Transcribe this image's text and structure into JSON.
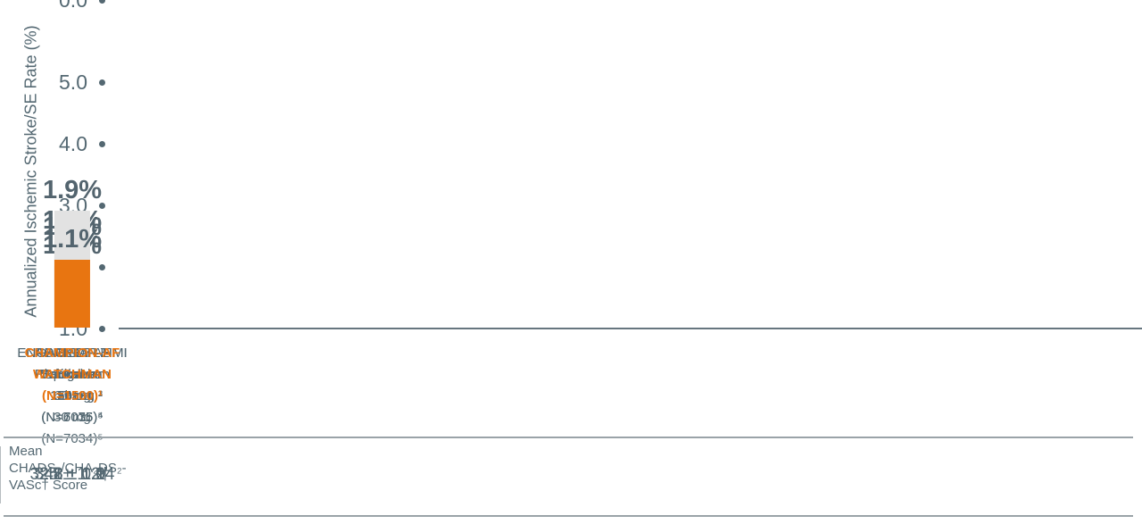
{
  "chart_data": {
    "type": "bar",
    "title": "",
    "xlabel": "",
    "ylabel": "Annualized Ischemic Stroke/SE Rate (%)",
    "ylim": [
      0,
      5
    ],
    "ytick_labels": [
      "5.0",
      "4.0",
      "3.0",
      "2.0",
      "1.0",
      "0.0"
    ],
    "grid": false,
    "legend": false,
    "categories": [
      "ROCKET-AF Rivaroxaban (N=7131)²",
      "ARISTOTLE Apixaban (N=9120)³",
      "RE-LY Dabigatran 150 mg (N=6076)⁴",
      "RE-LY Dabigatran 110 mg (N=6015)⁴",
      "ENGAGE-AF-TIMI Edoxaban 60 mg (N=7035)⁵",
      "ENGAGE-AF-TIMI Edoxaban 30 mg (N=7034)⁵",
      "CHAMPION-AF WATCHMAN (N=1500)¹"
    ],
    "values": [
      1.4,
      1.1,
      1.0,
      1.4,
      1.3,
      1.9,
      1.1
    ],
    "value_labels": [
      "1.4%",
      "1.1%",
      "1.0%",
      "1.4%",
      "1.3%",
      "1.9%",
      "1.1%"
    ],
    "highlight_index": 6,
    "bar_color_default": "#E2E2E2",
    "bar_color_highlight": "#E87511",
    "mean_score_row": {
      "header": "Mean CHADS₂/CHA₂DS₂-VASc† Score",
      "values": [
        "3.48 ± 0.94",
        "2.1 ± 1.1",
        "2.2 ± 1.2",
        "2.1 ± 1.1",
        "2.8 ± 1.0",
        "2.8 ± 1.0",
        "3.5  ± 1.2†"
      ]
    }
  },
  "columns": [
    {
      "label_lines": "ROCKET-AF\nRivaroxaban\n(N=7131)²",
      "value_label": "1.4%",
      "score": "3.48 ± 0.94"
    },
    {
      "label_lines": "ARISTOTLE\nApixaban\n(N=9120)³",
      "value_label": "1.1%",
      "score": "2.1 ± 1.1"
    },
    {
      "label_lines": "RE-LY\nDabigatran\n150 mg\n(N=6076)⁴",
      "value_label": "1.0%",
      "score": "2.2 ± 1.2"
    },
    {
      "label_lines": "RE-LY\nDabigatran\n110 mg\n(N=6015)⁴",
      "value_label": "1.4%",
      "score": "2.1 ± 1.1"
    },
    {
      "label_lines": "ENGAGE-AF-TIMI\nEdoxaban\n60 mg\n(N=7035)⁵",
      "value_label": "1.3%",
      "score": "2.8 ± 1.0"
    },
    {
      "label_lines": "ENGAGE-AF-TIMI Edox-\naban\n30 mg\n(N=7034)⁵",
      "value_label": "1.9%",
      "score": "2.8 ± 1.0"
    },
    {
      "label_lines": "CHAMPION-AF\nWATCHMAN\n(N=1500)¹",
      "value_label": "1.1%",
      "score": "3.5  ± 1.2†"
    }
  ],
  "score_table": {
    "header_lines": "Mean\nCHADS₂/CHA₂DS₂-\nVASc† Score"
  },
  "colors": {
    "slate_text": "#546872",
    "axis_line": "#66767F",
    "bar_gray": "#E2E2E2",
    "highlight_orange": "#E87511",
    "rule_gray": "#9AA3A8",
    "divider_gray": "#B6BCC0",
    "background": "#FFFFFF"
  }
}
